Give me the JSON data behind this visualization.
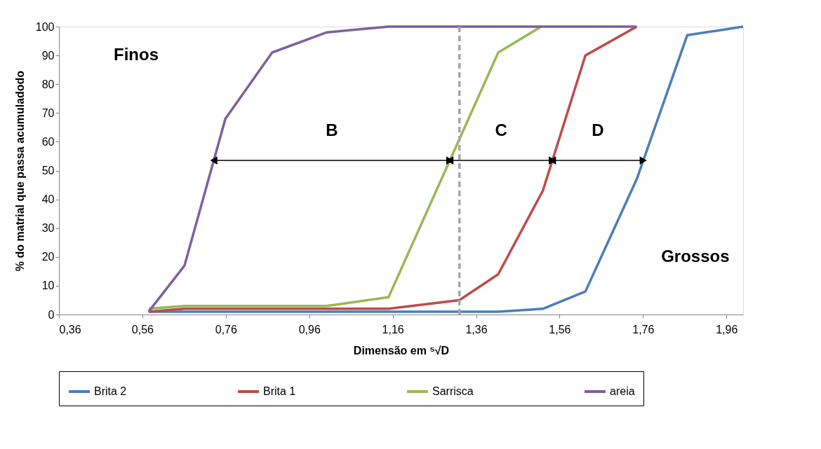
{
  "chart_data": {
    "type": "line",
    "xlabel": "Dimensão em ⁵√D",
    "ylabel": "% do matrial que passa acumuladodo",
    "xlim": [
      0.36,
      2.0
    ],
    "ylim": [
      0,
      100
    ],
    "xticks": [
      {
        "value": 0.36,
        "label": "0,36"
      },
      {
        "value": 0.56,
        "label": "0,56"
      },
      {
        "value": 0.76,
        "label": "0,76"
      },
      {
        "value": 0.96,
        "label": "0,96"
      },
      {
        "value": 1.16,
        "label": "1,16"
      },
      {
        "value": 1.36,
        "label": "1,36"
      },
      {
        "value": 1.56,
        "label": "1,56"
      },
      {
        "value": 1.76,
        "label": "1,76"
      },
      {
        "value": 1.96,
        "label": "1,96"
      }
    ],
    "yticks": [
      0,
      10,
      20,
      30,
      40,
      50,
      60,
      70,
      80,
      90,
      100
    ],
    "grid": false,
    "legend": "bottom",
    "marker": "none",
    "line_style": "solid",
    "series": [
      {
        "name": "Brita 2",
        "color": "#4a7ebb",
        "x": [
          0.575,
          0.661,
          0.759,
          0.871,
          1.002,
          1.15,
          1.32,
          1.413,
          1.52,
          1.622,
          1.745,
          1.866,
          2.0
        ],
        "values": [
          1,
          1,
          1,
          1,
          1,
          1,
          1,
          1,
          2,
          8,
          47,
          97,
          100
        ]
      },
      {
        "name": "Brita 1",
        "color": "#be4b48",
        "x": [
          0.575,
          0.661,
          0.759,
          0.871,
          1.002,
          1.15,
          1.32,
          1.413,
          1.52,
          1.622,
          1.745
        ],
        "values": [
          1,
          2,
          2,
          2,
          2,
          2,
          5,
          14,
          43,
          90,
          100
        ]
      },
      {
        "name": "Sarrisca",
        "color": "#98b954",
        "x": [
          0.575,
          0.661,
          0.759,
          0.871,
          1.002,
          1.15,
          1.413,
          1.516
        ],
        "values": [
          2,
          3,
          3,
          3,
          3,
          6,
          91,
          100
        ]
      },
      {
        "name": "areia",
        "color": "#7d60a0",
        "x": [
          0.575,
          0.661,
          0.759,
          0.871,
          1.002,
          1.15,
          1.745
        ],
        "values": [
          1,
          17,
          68,
          91,
          98,
          100,
          100
        ]
      }
    ],
    "ref_lines": [
      {
        "axis": "x",
        "value": 1.32,
        "color": "#a6a6a6",
        "line_style": "dashed"
      }
    ],
    "annotations": [
      "Finos",
      "Grossos",
      "B",
      "C",
      "D"
    ]
  }
}
